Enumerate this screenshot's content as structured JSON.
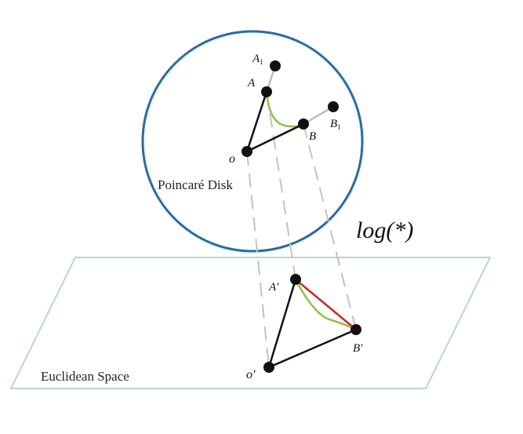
{
  "labels": {
    "disk_title": "Poincaré Disk",
    "plane_title": "Euclidean Space",
    "map_label": "log(*)",
    "point_A1": "A",
    "point_A1_sub": "1",
    "point_A": "A",
    "point_B": "B",
    "point_B1": "B",
    "point_B1_sub": "1",
    "point_o": "o",
    "point_A_prime": "A'",
    "point_B_prime": "B'",
    "point_o_prime": "o'"
  },
  "colors": {
    "disk_stroke": "#1f6fb0",
    "plane_stroke": "#b8d4ea",
    "segment": "#111111",
    "extension": "#bdbdbd",
    "projection_dash": "#c2c2c2",
    "geodesic": "#8cc63f",
    "euclidean_segment": "#e02020",
    "point_fill": "#111111"
  }
}
